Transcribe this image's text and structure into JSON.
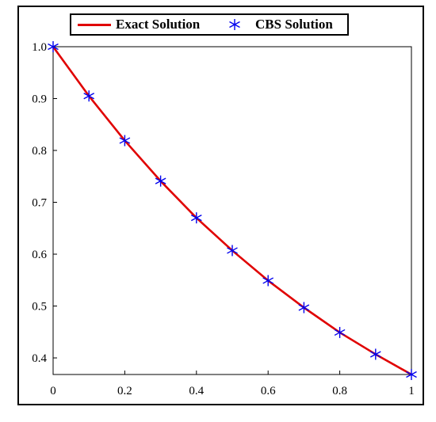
{
  "legend": {
    "exact_label": "Exact Solution",
    "cbs_label": "CBS Solution"
  },
  "colors": {
    "exact": "#e00000",
    "cbs": "#0000ee",
    "axis": "#000000"
  },
  "chart_data": {
    "type": "line",
    "title": "",
    "xlabel": "",
    "ylabel": "",
    "xlim": [
      0,
      1
    ],
    "ylim": [
      0.368,
      1.0
    ],
    "x_ticks": [
      "0",
      "0.2",
      "0.4",
      "0.6",
      "0.8",
      "1"
    ],
    "y_ticks": [
      "1.0",
      "0.9",
      "0.8",
      "0.7",
      "0.6",
      "0.5",
      "0.4"
    ],
    "grid": false,
    "legend_position": "top-center",
    "series": [
      {
        "name": "Exact Solution",
        "style": "solid-line",
        "x": [
          0,
          0.1,
          0.2,
          0.3,
          0.4,
          0.5,
          0.6,
          0.7,
          0.8,
          0.9,
          1.0
        ],
        "y": [
          1.0,
          0.905,
          0.819,
          0.741,
          0.67,
          0.607,
          0.549,
          0.497,
          0.449,
          0.407,
          0.368
        ]
      },
      {
        "name": "CBS Solution",
        "style": "star-markers",
        "x": [
          0,
          0.1,
          0.2,
          0.3,
          0.4,
          0.5,
          0.6,
          0.7,
          0.8,
          0.9,
          1.0
        ],
        "y": [
          1.0,
          0.905,
          0.819,
          0.741,
          0.67,
          0.607,
          0.549,
          0.497,
          0.449,
          0.407,
          0.368
        ]
      }
    ]
  }
}
